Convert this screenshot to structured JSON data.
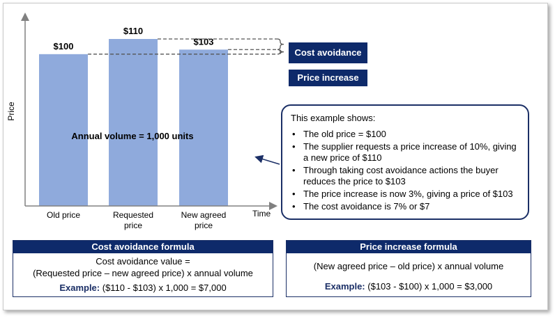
{
  "chart_data": {
    "type": "bar",
    "categories": [
      [
        "Old price"
      ],
      [
        "Requested",
        "price"
      ],
      [
        "New agreed",
        "price"
      ]
    ],
    "values": [
      100,
      110,
      103
    ],
    "data_labels": [
      "$100",
      "$110",
      "$103"
    ],
    "ylabel": "Price",
    "xlabel": "Time",
    "ylim": [
      0,
      120
    ],
    "bar_color": "#8faadc",
    "inside_label": "Annual volume = 1,000 units",
    "brackets": [
      {
        "label": "Cost avoidance",
        "from": 103,
        "to": 110
      },
      {
        "label": "Price increase",
        "from": 100,
        "to": 103
      }
    ]
  },
  "callout": {
    "intro": "This example shows:",
    "bullets": [
      "The old price = $100",
      "The supplier requests a price increase of 10%, giving a new price of $110",
      "Through taking cost avoidance actions the buyer reduces the price to $103",
      "The price increase is now 3%, giving a price of $103",
      "The cost avoidance is 7% or $7"
    ]
  },
  "cost_formula": {
    "title": "Cost avoidance formula",
    "line1": "Cost avoidance value =",
    "line2": "(Requested price – new agreed price) x annual volume",
    "example_label": "Example:",
    "example": "($110 - $103) x 1,000 = $7,000"
  },
  "price_formula": {
    "title": "Price increase formula",
    "line1": "(New agreed price – old price) x annual volume",
    "example_label": "Example:",
    "example": "($103 - $100) x 1,000 = $3,000"
  },
  "colors": {
    "navy": "#0e2a6a",
    "bar": "#8faadc",
    "axis": "#808080"
  }
}
